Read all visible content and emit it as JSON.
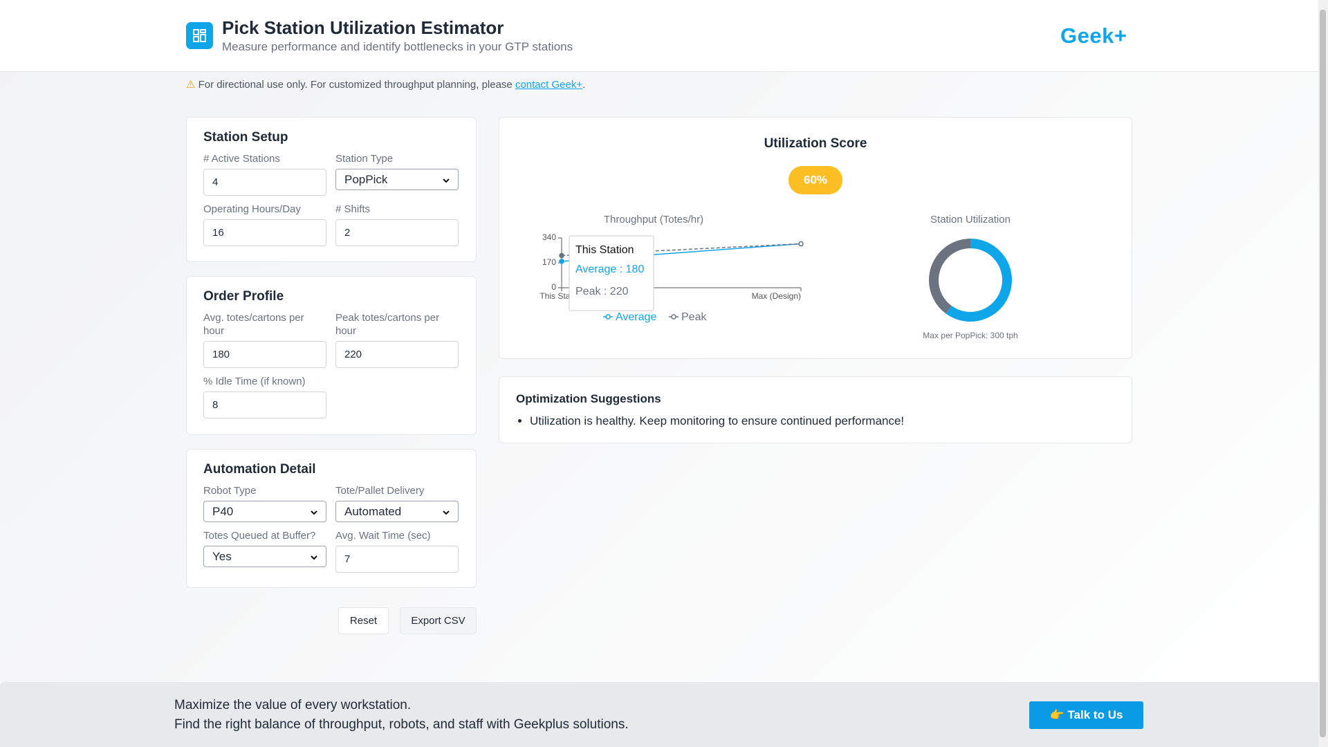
{
  "header": {
    "title": "Pick Station Utilization Estimator",
    "subtitle": "Measure performance and identify bottlenecks in your GTP stations",
    "logo": "Geek+"
  },
  "notice": {
    "text": "For directional use only. For customized throughput planning, please ",
    "link": "contact Geek+",
    "end": "."
  },
  "sections": [
    {
      "title": "Station Setup",
      "fields": [
        {
          "label": "# Active Stations",
          "value": "4",
          "control": "input"
        },
        {
          "label": "Station Type",
          "value": "PopPick",
          "control": "select"
        },
        {
          "label": "Operating Hours/Day",
          "value": "16",
          "control": "input"
        },
        {
          "label": "# Shifts",
          "value": "2",
          "control": "input"
        }
      ]
    },
    {
      "title": "Order Profile",
      "fields": [
        {
          "label": "Avg. totes/cartons per hour",
          "value": "180",
          "control": "input"
        },
        {
          "label": "Peak totes/cartons per hour",
          "value": "220",
          "control": "input"
        },
        {
          "label": "% Idle Time (if known)",
          "value": "8",
          "control": "input"
        }
      ]
    },
    {
      "title": "Automation Detail",
      "fields": [
        {
          "label": "Robot Type",
          "value": "P40",
          "control": "select"
        },
        {
          "label": "Tote/Pallet Delivery",
          "value": "Automated",
          "control": "select"
        },
        {
          "label": "Totes Queued at Buffer?",
          "value": "Yes",
          "control": "select"
        },
        {
          "label": "Avg. Wait Time (sec)",
          "value": "7",
          "control": "input"
        }
      ]
    }
  ],
  "buttons": [
    "Reset",
    "Export CSV"
  ],
  "score": {
    "title": "Utilization Score",
    "value": "60%"
  },
  "throughput_chart": {
    "type": "line",
    "title": "Throughput (Totes/hr)",
    "categories": [
      "This Station",
      "Max (Design)"
    ],
    "series": [
      {
        "name": "Average",
        "color": "#0ea5e9",
        "values": [
          180,
          300
        ]
      },
      {
        "name": "Peak",
        "color": "#6b7280",
        "values": [
          220,
          300
        ]
      }
    ],
    "ylim": [
      0,
      340
    ],
    "yticks": [
      0,
      170,
      340
    ],
    "tooltip": {
      "title": "This Station",
      "lines": [
        "Average : 180",
        "Peak : 220"
      ]
    }
  },
  "utilization_chart": {
    "type": "pie",
    "title": "Station Utilization",
    "values": [
      60,
      40
    ],
    "colors": [
      "#0ea5e9",
      "#6b7280"
    ],
    "note": "Max per PopPick: 300 tph"
  },
  "suggestions": {
    "title": "Optimization Suggestions",
    "items": [
      "Utilization is healthy. Keep monitoring to ensure continued performance!"
    ]
  },
  "footer": {
    "lines": [
      "Maximize the value of every workstation.",
      "Find the right balance of throughput, robots, and staff with Geekplus solutions."
    ],
    "button": "👉 Talk to Us"
  }
}
